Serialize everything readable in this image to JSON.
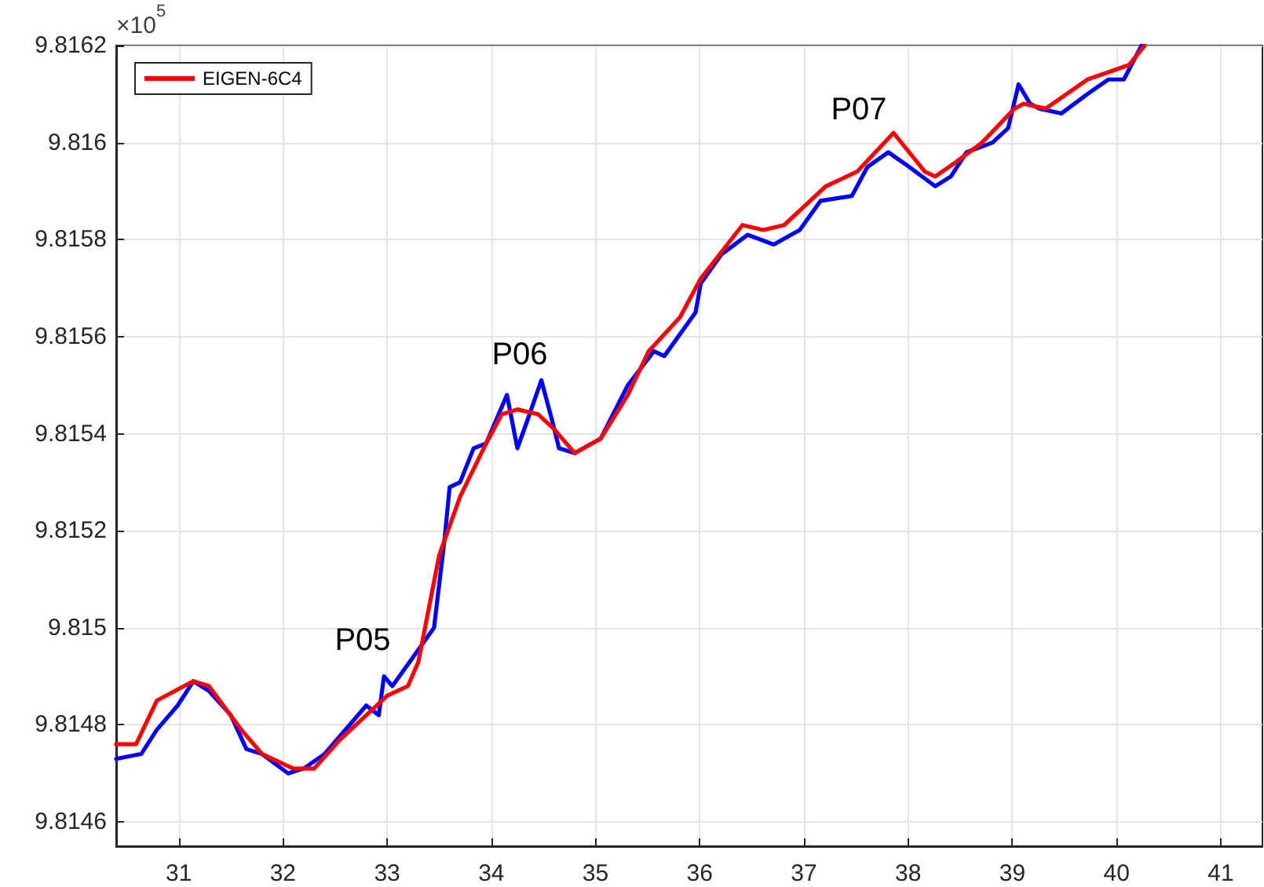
{
  "chart_data": {
    "type": "line",
    "xlim": [
      30.4,
      41.4
    ],
    "xticks": [
      31,
      32,
      33,
      34,
      35,
      36,
      37,
      38,
      39,
      40,
      41
    ],
    "ylim": [
      9.81455,
      9.8162
    ],
    "yticks": [
      9.8146,
      9.8148,
      9.815,
      9.8152,
      9.8154,
      9.8156,
      9.8158,
      9.816,
      9.8162
    ],
    "grid": true,
    "legend": "top left",
    "marker": "none",
    "line_style": "solid",
    "annotations": [
      "×10$^{5}$",
      "P05",
      "P06",
      "P07"
    ],
    "series": [
      {
        "color": "#0000ff",
        "x": [
          30.4,
          30.64,
          30.79,
          30.99,
          31.14,
          31.29,
          31.5,
          31.65,
          31.8,
          32.05,
          32.2,
          32.4,
          32.8,
          32.92,
          32.97,
          33.05,
          33.25,
          33.45,
          33.55,
          33.6,
          33.7,
          33.83,
          33.95,
          34.15,
          34.25,
          34.35,
          34.48,
          34.58,
          34.65,
          34.8,
          35.05,
          35.31,
          35.56,
          35.66,
          35.96,
          36.01,
          36.21,
          36.46,
          36.71,
          36.96,
          37.16,
          37.46,
          37.61,
          37.81,
          38.01,
          38.26,
          38.41,
          38.56,
          38.81,
          38.96,
          39.06,
          39.17,
          39.26,
          39.47,
          39.72,
          39.92,
          40.07,
          40.24
        ],
        "values": [
          9.81473,
          9.81474,
          9.81479,
          9.81484,
          9.81489,
          9.81487,
          9.81482,
          9.81475,
          9.81474,
          9.8147,
          9.81471,
          9.81474,
          9.81484,
          9.81482,
          9.8149,
          9.81488,
          9.81494,
          9.815,
          9.81518,
          9.81529,
          9.8153,
          9.81537,
          9.81538,
          9.81548,
          9.81537,
          9.81543,
          9.81551,
          9.81543,
          9.81537,
          9.81536,
          9.81539,
          9.8155,
          9.81557,
          9.81556,
          9.81565,
          9.81571,
          9.81577,
          9.81581,
          9.81579,
          9.81582,
          9.81588,
          9.81589,
          9.81595,
          9.81598,
          9.81595,
          9.81591,
          9.81593,
          9.81598,
          9.816,
          9.81603,
          9.81612,
          9.81608,
          9.81607,
          9.81606,
          9.8161,
          9.81613,
          9.81613,
          9.8162
        ]
      },
      {
        "name": "EIGEN-6C4",
        "color": "#ff0000",
        "x": [
          30.4,
          30.59,
          30.79,
          31.14,
          31.29,
          31.6,
          31.8,
          32.1,
          32.3,
          32.55,
          33.0,
          33.2,
          33.3,
          33.5,
          33.7,
          33.95,
          34.1,
          34.25,
          34.45,
          34.6,
          34.8,
          35.05,
          35.31,
          35.51,
          35.81,
          36.01,
          36.41,
          36.61,
          36.81,
          37.21,
          37.51,
          37.86,
          38.16,
          38.26,
          38.46,
          38.71,
          39.02,
          39.11,
          39.32,
          39.72,
          40.12,
          40.27
        ],
        "values": [
          9.81476,
          9.81476,
          9.81485,
          9.81489,
          9.81488,
          9.81479,
          9.81474,
          9.81471,
          9.81471,
          9.81477,
          9.81486,
          9.81488,
          9.81493,
          9.81515,
          9.81527,
          9.81538,
          9.81544,
          9.81545,
          9.81544,
          9.81541,
          9.81536,
          9.81539,
          9.81548,
          9.81557,
          9.81564,
          9.81572,
          9.81583,
          9.81582,
          9.81583,
          9.81591,
          9.81594,
          9.81602,
          9.81594,
          9.81593,
          9.81596,
          9.816,
          9.81607,
          9.81608,
          9.81607,
          9.81613,
          9.81616,
          9.8162
        ]
      }
    ]
  }
}
